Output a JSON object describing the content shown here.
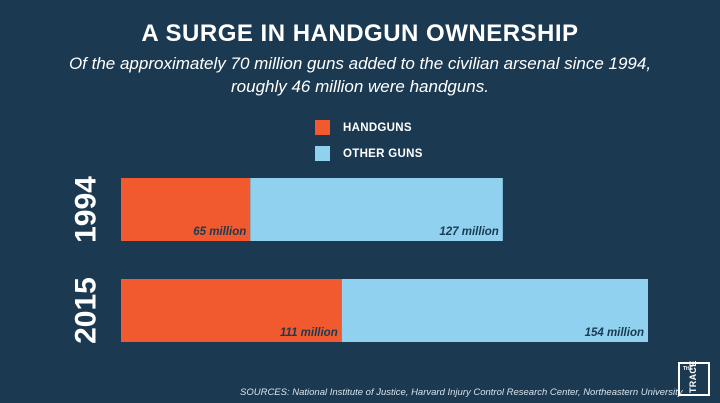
{
  "header": {
    "title": "A SURGE IN HANDGUN OWNERSHIP",
    "subtitle": "Of the approximately 70 million guns added to the civilian arsenal since 1994, roughly 46 million were handguns."
  },
  "legend": [
    {
      "label": "HANDGUNS",
      "color": "#f15a2f"
    },
    {
      "label": "OTHER GUNS",
      "color": "#8fd1ee"
    }
  ],
  "chart_data": {
    "type": "bar",
    "orientation": "horizontal",
    "stacked": true,
    "categories": [
      "1994",
      "2015"
    ],
    "series": [
      {
        "name": "HANDGUNS",
        "values": [
          65,
          111
        ],
        "labels": [
          "65 million",
          "111 million"
        ],
        "color": "#f15a2f"
      },
      {
        "name": "OTHER GUNS",
        "values": [
          127,
          154
        ],
        "labels": [
          "127 million",
          "154 million"
        ],
        "color": "#8fd1ee"
      }
    ],
    "xlim": [
      0,
      265
    ],
    "grid": false,
    "legend_position": "top-center",
    "units": "million"
  },
  "footer": {
    "sources": "SOURCES:  National Institute of Justice, Harvard Injury Control Research Center, Northeastern University",
    "logo_the": "THE",
    "logo_trace": "TRACE"
  }
}
